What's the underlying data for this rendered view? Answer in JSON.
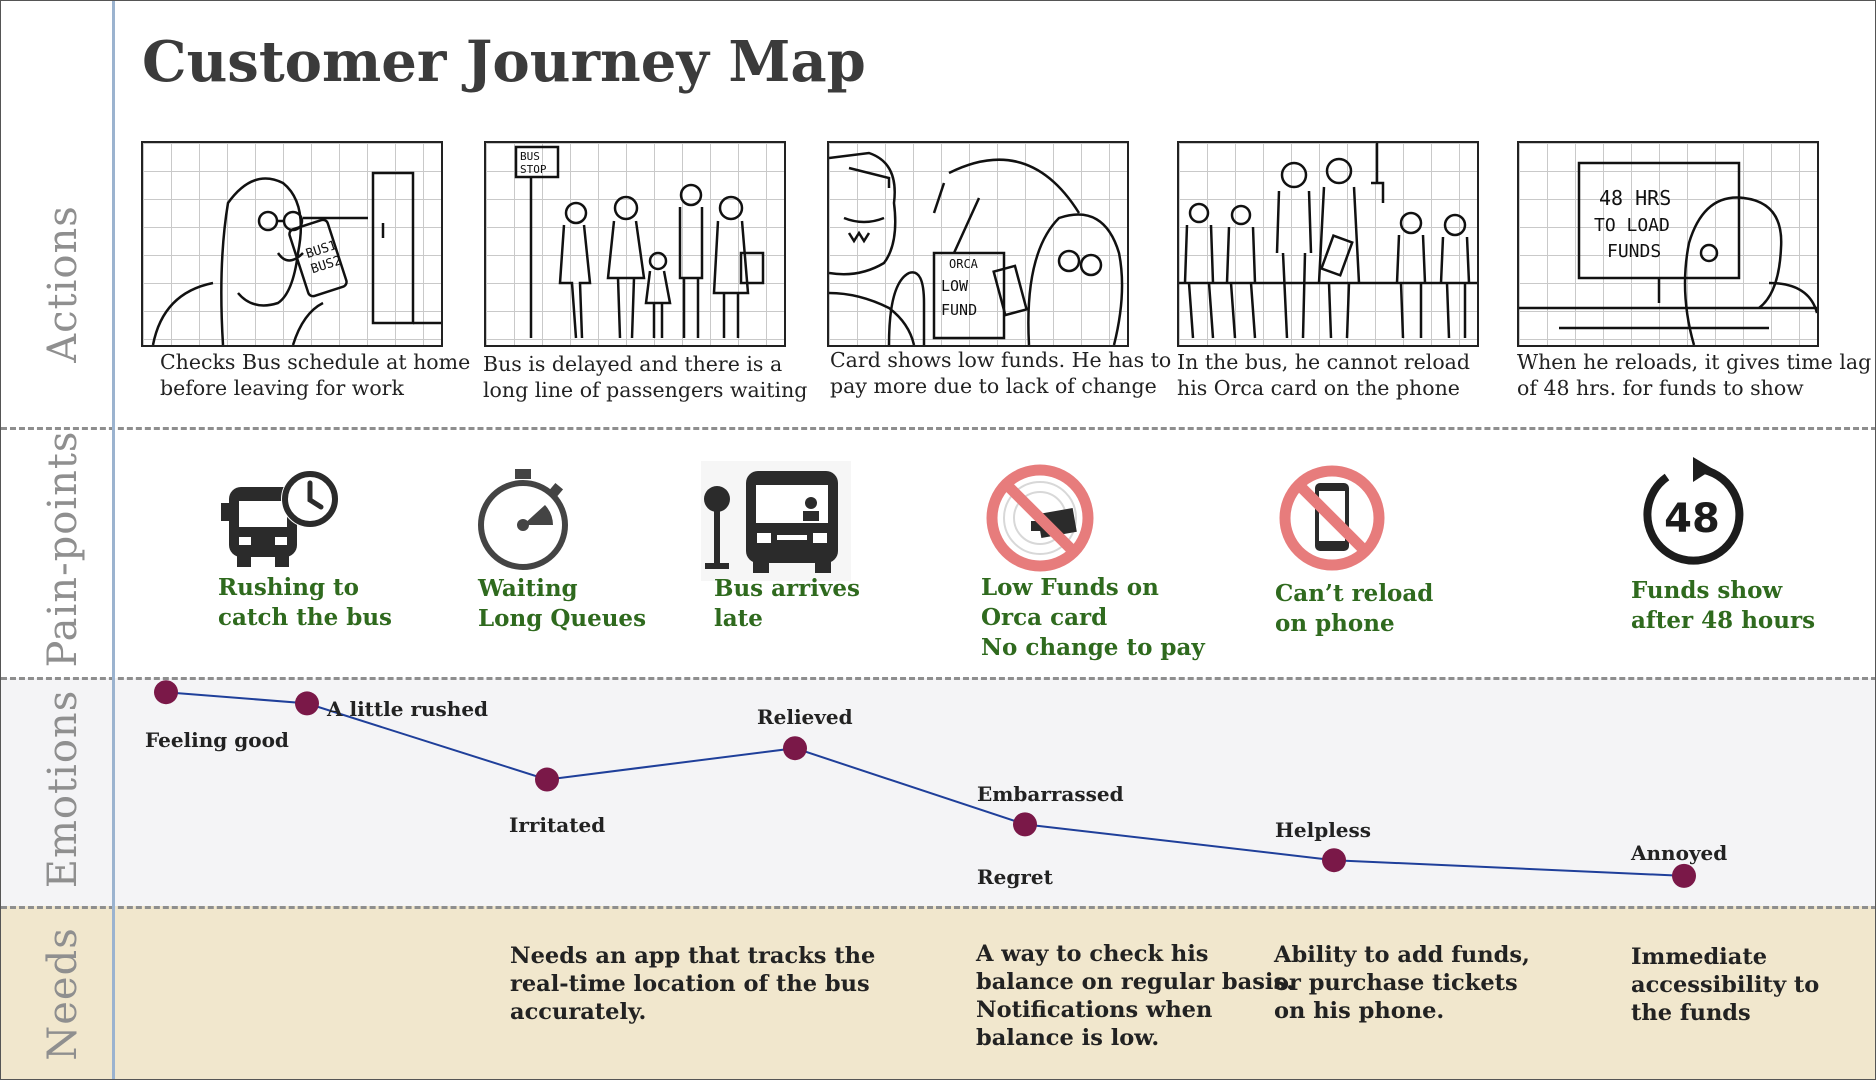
{
  "title": "Customer Journey Map",
  "rows": {
    "actions": "Actions",
    "painpoints": "Pain-points",
    "emotions": "Emotions",
    "needs": "Needs"
  },
  "sketch_text": {
    "phone_line1": "BUS1",
    "phone_line2": "BUS2",
    "bus_stop_line1": "BUS",
    "bus_stop_line2": "STOP",
    "card_line1": "ORCA",
    "card_line2": "LOW",
    "card_line3": "FUND",
    "screen_line1": "48 HRS",
    "screen_line2": "TO LOAD",
    "screen_line3": "FUNDS"
  },
  "actions": [
    {
      "line1": "Checks Bus schedule at home",
      "line2": "before leaving for work"
    },
    {
      "line1": "Bus is delayed and there is a",
      "line2": "long line of passengers waiting"
    },
    {
      "line1": "Card shows low funds.  He has to",
      "line2": "pay more due to lack of change"
    },
    {
      "line1": "In the bus, he cannot reload",
      "line2": "his Orca card on the phone"
    },
    {
      "line1": "When he reloads, it gives  time lag",
      "line2": "of 48 hrs. for funds  to show"
    }
  ],
  "painpoints": [
    {
      "icon": "bus-clock-icon",
      "lines": [
        "Rushing to",
        "catch the bus"
      ]
    },
    {
      "icon": "stopwatch-icon",
      "lines": [
        "Waiting",
        "Long Queues"
      ]
    },
    {
      "icon": "bus-stop-icon",
      "lines": [
        "Bus arrives",
        "late"
      ]
    },
    {
      "icon": "no-card-icon",
      "lines": [
        "Low Funds on",
        "Orca card",
        "No change to pay"
      ]
    },
    {
      "icon": "no-phone-icon",
      "lines": [
        "Can’t reload",
        "on phone"
      ]
    },
    {
      "icon": "48-hours-icon",
      "lines": [
        "Funds show",
        "after 48 hours"
      ],
      "badge": "48"
    }
  ],
  "emotions": {
    "labels": [
      "Feeling good",
      "A little rushed",
      "Irritated",
      "Relieved",
      "Embarrassed",
      "Regret",
      "Helpless",
      "Annoyed"
    ],
    "levels": [
      {
        "step": 1,
        "level": 0.95,
        "label": "Feeling good"
      },
      {
        "step": 2,
        "level": 0.9,
        "label": "A little rushed"
      },
      {
        "step": 3,
        "level": 0.56,
        "label": "Irritated"
      },
      {
        "step": 4,
        "level": 0.7,
        "label": "Relieved"
      },
      {
        "step": 5,
        "level": 0.36,
        "label": "Embarrassed / Regret"
      },
      {
        "step": 6,
        "level": 0.2,
        "label": "Helpless"
      },
      {
        "step": 7,
        "level": 0.13,
        "label": "Annoyed"
      }
    ],
    "dot_color": "#7a1848",
    "line_color": "#1f3f9a"
  },
  "needs": [
    {
      "lines": [
        "Needs an app that tracks the",
        "real-time location of the bus",
        "accurately."
      ]
    },
    {
      "lines": [
        "A way to check his",
        "balance on regular basis.",
        "Notifications when",
        "balance is low."
      ]
    },
    {
      "lines": [
        "Ability to add funds,",
        "or purchase tickets",
        "on his phone."
      ]
    },
    {
      "lines": [
        "Immediate",
        "accessibility to",
        "the funds"
      ]
    }
  ],
  "colors": {
    "painpoint_text": "#2f6a1e",
    "row_label": "#8f8f8f",
    "needs_band": "#f1e7cd",
    "emotions_band": "#f4f4f6",
    "no_sign": "#e77c7c"
  }
}
